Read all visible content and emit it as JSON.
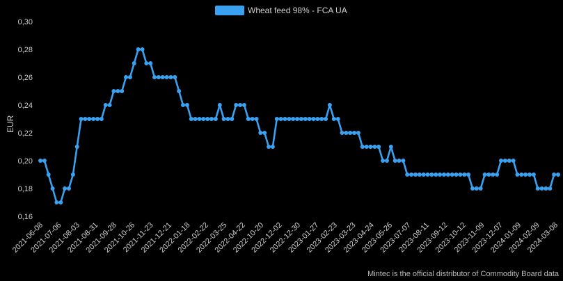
{
  "chart_data": {
    "type": "line",
    "title": "",
    "ylabel": "EUR",
    "xlabel": "",
    "ylim": [
      0.16,
      0.3
    ],
    "y_ticks": [
      "0,16",
      "0,18",
      "0,20",
      "0,22",
      "0,24",
      "0,26",
      "0,28",
      "0,30"
    ],
    "grid": false,
    "legend": "top-center",
    "x_tick_labels": [
      "2021-06-08",
      "2021-07-06",
      "2021-08-03",
      "2021-08-31",
      "2021-09-28",
      "2021-10-26",
      "2021-11-23",
      "2021-12-21",
      "2022-01-18",
      "2022-02-22",
      "2022-03-25",
      "2022-04-22",
      "2022-10-20",
      "2022-12-02",
      "2022-12-30",
      "2023-01-27",
      "2023-02-23",
      "2023-03-23",
      "2023-04-24",
      "2023-05-26",
      "2023-07-07",
      "2023-08-11",
      "2023-09-12",
      "2023-10-12",
      "2023-11-09",
      "2023-12-07",
      "2024-01-09",
      "2024-02-09",
      "2024-03-08"
    ],
    "series": [
      {
        "name": "Wheat feed 98% - FCA UA",
        "color": "#3aa0f0",
        "values": [
          0.2,
          0.2,
          0.19,
          0.18,
          0.17,
          0.17,
          0.18,
          0.18,
          0.19,
          0.21,
          0.23,
          0.23,
          0.23,
          0.23,
          0.23,
          0.23,
          0.24,
          0.24,
          0.25,
          0.25,
          0.25,
          0.26,
          0.26,
          0.27,
          0.28,
          0.28,
          0.27,
          0.27,
          0.26,
          0.26,
          0.26,
          0.26,
          0.26,
          0.26,
          0.25,
          0.24,
          0.24,
          0.23,
          0.23,
          0.23,
          0.23,
          0.23,
          0.23,
          0.23,
          0.24,
          0.23,
          0.23,
          0.23,
          0.24,
          0.24,
          0.24,
          0.23,
          0.23,
          0.23,
          0.22,
          0.22,
          0.21,
          0.21,
          0.23,
          0.23,
          0.23,
          0.23,
          0.23,
          0.23,
          0.23,
          0.23,
          0.23,
          0.23,
          0.23,
          0.23,
          0.23,
          0.24,
          0.23,
          0.23,
          0.22,
          0.22,
          0.22,
          0.22,
          0.22,
          0.21,
          0.21,
          0.21,
          0.21,
          0.21,
          0.2,
          0.2,
          0.21,
          0.2,
          0.2,
          0.2,
          0.19,
          0.19,
          0.19,
          0.19,
          0.19,
          0.19,
          0.19,
          0.19,
          0.19,
          0.19,
          0.19,
          0.19,
          0.19,
          0.19,
          0.19,
          0.19,
          0.18,
          0.18,
          0.18,
          0.19,
          0.19,
          0.19,
          0.19,
          0.2,
          0.2,
          0.2,
          0.2,
          0.19,
          0.19,
          0.19,
          0.19,
          0.19,
          0.18,
          0.18,
          0.18,
          0.18,
          0.19,
          0.19
        ]
      }
    ]
  },
  "footer": "Mintec is the official distributor of Commodity Board data"
}
